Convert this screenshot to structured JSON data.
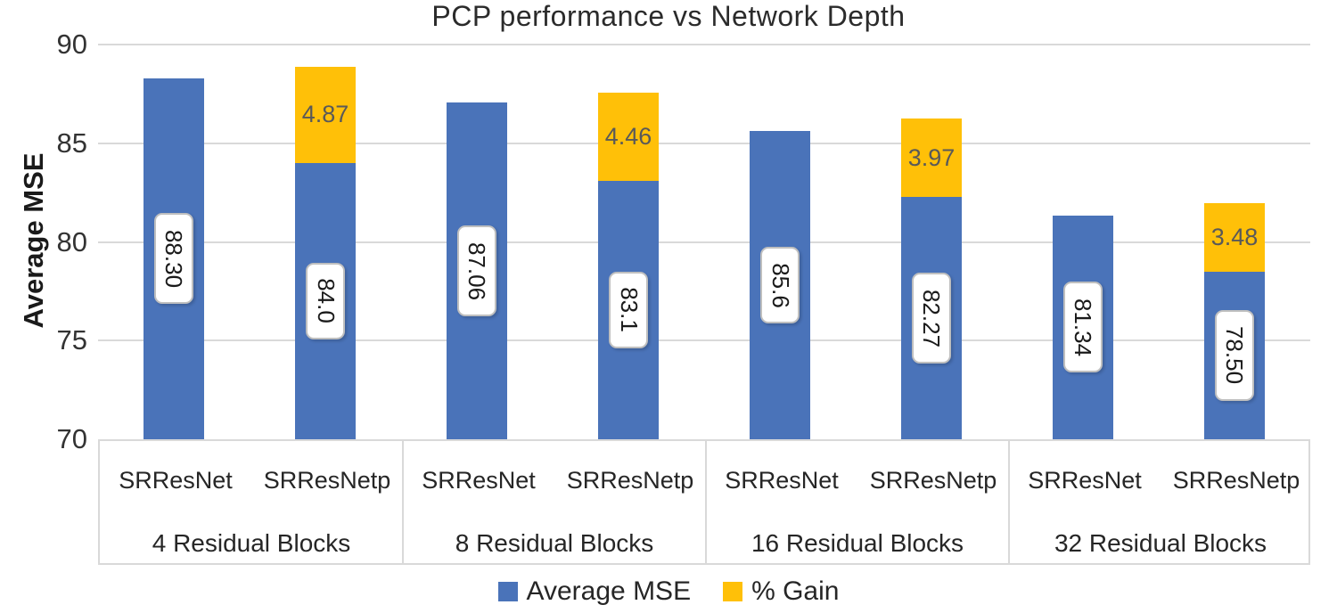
{
  "title": "PCP performance vs Network Depth",
  "y_axis": {
    "label": "Average MSE",
    "ticks": [
      "90",
      "85",
      "80",
      "75",
      "70"
    ],
    "min": 70,
    "max": 90
  },
  "legend": [
    {
      "label": "Average MSE",
      "color": "#4a73b9"
    },
    {
      "label": "% Gain",
      "color": "#ffc008"
    }
  ],
  "colors": {
    "average_mse": "#4a73b9",
    "gain": "#ffc008",
    "gridline": "#d9d9d9",
    "data_label_text": "#1a1a1a",
    "gain_label_text": "#595959"
  },
  "chart_data": {
    "type": "bar",
    "stacked": true,
    "title": "PCP performance vs Network Depth",
    "xlabel": "",
    "ylabel": "Average MSE",
    "ylim": [
      70,
      90
    ],
    "grid": true,
    "legend_position": "bottom",
    "series_names": [
      "Average MSE",
      "% Gain"
    ],
    "groups": [
      {
        "label": "4 Residual Blocks",
        "bars": [
          {
            "label": "SRResNet",
            "mse": 88.3,
            "mse_label": "88.30",
            "gain": null,
            "gain_label": null
          },
          {
            "label": "SRResNetp",
            "mse": 84.0,
            "mse_label": "84.0",
            "gain": 4.87,
            "gain_label": "4.87"
          }
        ]
      },
      {
        "label": "8 Residual Blocks",
        "bars": [
          {
            "label": "SRResNet",
            "mse": 87.06,
            "mse_label": "87.06",
            "gain": null,
            "gain_label": null
          },
          {
            "label": "SRResNetp",
            "mse": 83.1,
            "mse_label": "83.1",
            "gain": 4.46,
            "gain_label": "4.46"
          }
        ]
      },
      {
        "label": "16 Residual Blocks",
        "bars": [
          {
            "label": "SRResNet",
            "mse": 85.6,
            "mse_label": "85.6",
            "gain": null,
            "gain_label": null
          },
          {
            "label": "SRResNetp",
            "mse": 82.27,
            "mse_label": "82.27",
            "gain": 3.97,
            "gain_label": "3.97"
          }
        ]
      },
      {
        "label": "32 Residual Blocks",
        "bars": [
          {
            "label": "SRResNet",
            "mse": 81.34,
            "mse_label": "81.34",
            "gain": null,
            "gain_label": null
          },
          {
            "label": "SRResNetp",
            "mse": 78.5,
            "mse_label": "78.50",
            "gain": 3.48,
            "gain_label": "3.48"
          }
        ]
      }
    ]
  }
}
